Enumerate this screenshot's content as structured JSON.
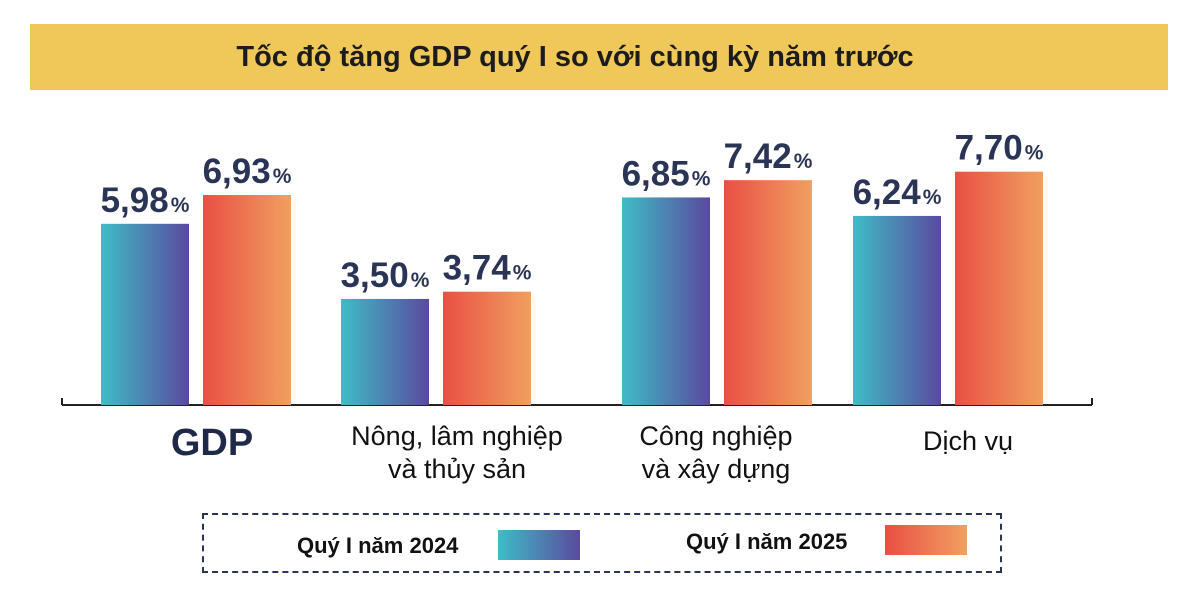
{
  "chart_data": {
    "type": "bar",
    "title": "Tốc độ tăng GDP quý I so với cùng kỳ năm trước",
    "categories": [
      [
        "GDP"
      ],
      [
        "Nông, lâm nghiệp",
        "và thủy sản"
      ],
      [
        "Công nghiệp",
        "và xây dựng"
      ],
      [
        "Dịch vụ"
      ]
    ],
    "series": [
      {
        "name": "Quý I năm 2024",
        "values": [
          5.98,
          3.5,
          6.85,
          6.24
        ],
        "labels": [
          "5,98",
          "3,50",
          "6,85",
          "6,24"
        ]
      },
      {
        "name": "Quý I năm 2025",
        "values": [
          6.93,
          3.74,
          7.42,
          7.7
        ],
        "labels": [
          "6,93",
          "3,74",
          "7,42",
          "7,70"
        ]
      }
    ],
    "unit": "%",
    "colors": {
      "series_2024": [
        "#3fbcc6",
        "#5a4a9e"
      ],
      "series_2025": [
        "#e94f45",
        "#f0a060"
      ],
      "title_band": "#f0c85a",
      "value_text": "#2a3555"
    }
  },
  "legend": {
    "item_2024": "Quý I năm 2024",
    "item_2025": "Quý I năm 2025"
  }
}
